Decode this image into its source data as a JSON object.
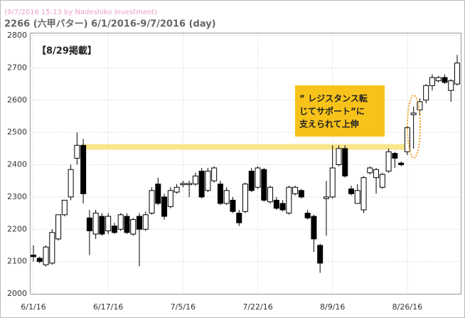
{
  "chart_data": {
    "type": "candlestick",
    "caption": "(9/7/2016 15:13 by Nadeshiko Investment)",
    "title": "2266 (六甲バター) 6/1/2016-9/7/2016 (day)",
    "annotation": "【8/29掲載】",
    "callout": [
      "” レジスタンス転",
      "じてサポート”に",
      "支えられて上伸"
    ],
    "resistance_line": 2455,
    "categories": [
      "6/1/16",
      null,
      null,
      null,
      null,
      null,
      null,
      null,
      null,
      null,
      null,
      null,
      "6/17/16",
      null,
      null,
      null,
      null,
      null,
      null,
      null,
      null,
      null,
      null,
      null,
      "7/5/16",
      null,
      null,
      null,
      null,
      null,
      null,
      null,
      null,
      null,
      null,
      null,
      "7/22/16",
      null,
      null,
      null,
      null,
      null,
      null,
      null,
      null,
      null,
      null,
      null,
      "8/9/16",
      null,
      null,
      null,
      null,
      null,
      null,
      null,
      null,
      null,
      null,
      null,
      "8/26/16",
      null,
      null,
      null,
      null,
      null,
      null,
      null,
      null
    ],
    "open": [
      2120,
      2110,
      2090,
      2095,
      2170,
      2245,
      2300,
      2420,
      2460,
      2235,
      2185,
      2240,
      2195,
      2210,
      2200,
      2240,
      2185,
      2240,
      2200,
      2250,
      2340,
      2300,
      2270,
      2315,
      2338,
      2338,
      2340,
      2380,
      2320,
      2350,
      2340,
      2280,
      2290,
      2250,
      2255,
      2380,
      2330,
      2385,
      2285,
      2290,
      2280,
      2250,
      2310,
      2320,
      2250,
      2240,
      2150,
      2295,
      2300,
      2400,
      2450,
      2325,
      2280,
      2260,
      2375,
      2360,
      2330,
      2380,
      2435,
      2405,
      2440,
      2555,
      2570,
      2600,
      2645,
      2660,
      2670,
      2630,
      2650
    ],
    "high": [
      2150,
      2115,
      2150,
      2200,
      2245,
      2290,
      2400,
      2500,
      2480,
      2260,
      2260,
      2250,
      2250,
      2220,
      2250,
      2250,
      2235,
      2250,
      2255,
      2330,
      2360,
      2310,
      2330,
      2340,
      2350,
      2350,
      2375,
      2390,
      2390,
      2395,
      2350,
      2330,
      2300,
      2260,
      2345,
      2390,
      2395,
      2390,
      2335,
      2300,
      2290,
      2335,
      2335,
      2325,
      2260,
      2245,
      2155,
      2350,
      2460,
      2460,
      2460,
      2335,
      2340,
      2365,
      2395,
      2390,
      2375,
      2450,
      2440,
      2410,
      2520,
      2580,
      2605,
      2650,
      2680,
      2675,
      2680,
      2665,
      2740
    ],
    "low": [
      2100,
      2095,
      2085,
      2090,
      2165,
      2240,
      2290,
      2400,
      2280,
      2120,
      2170,
      2180,
      2185,
      2185,
      2195,
      2185,
      2180,
      2085,
      2195,
      2245,
      2275,
      2230,
      2265,
      2310,
      2330,
      2300,
      2335,
      2295,
      2315,
      2345,
      2275,
      2275,
      2250,
      2210,
      2250,
      2315,
      2325,
      2285,
      2280,
      2260,
      2255,
      2245,
      2305,
      2295,
      2230,
      2130,
      2065,
      2180,
      2295,
      2395,
      2360,
      2305,
      2280,
      2250,
      2370,
      2310,
      2325,
      2375,
      2390,
      2395,
      2430,
      2450,
      2555,
      2590,
      2630,
      2655,
      2650,
      2595,
      2645
    ],
    "close": [
      2115,
      2100,
      2145,
      2190,
      2245,
      2290,
      2385,
      2460,
      2310,
      2195,
      2250,
      2185,
      2240,
      2190,
      2245,
      2190,
      2230,
      2200,
      2245,
      2320,
      2280,
      2240,
      2320,
      2330,
      2342,
      2342,
      2365,
      2300,
      2380,
      2390,
      2280,
      2320,
      2255,
      2220,
      2340,
      2320,
      2390,
      2290,
      2330,
      2265,
      2260,
      2330,
      2330,
      2300,
      2235,
      2170,
      2095,
      2300,
      2390,
      2450,
      2365,
      2310,
      2320,
      2360,
      2390,
      2385,
      2370,
      2440,
      2420,
      2400,
      2515,
      2560,
      2595,
      2645,
      2670,
      2670,
      2655,
      2660,
      2715
    ],
    "up_color": "#ffffff",
    "down_color": "#000000",
    "ylim": [
      2000,
      2800
    ],
    "yticks": [
      2000,
      2100,
      2200,
      2300,
      2400,
      2500,
      2600,
      2700,
      2800
    ],
    "grid": true
  }
}
